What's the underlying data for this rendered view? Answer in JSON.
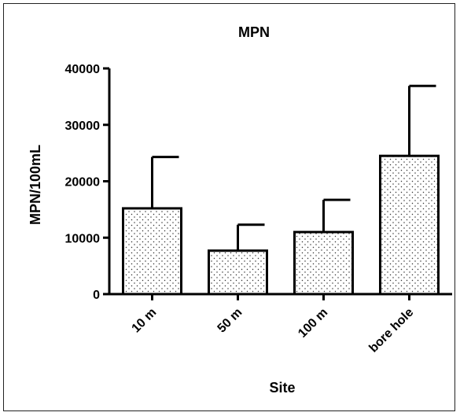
{
  "chart_data": {
    "type": "bar",
    "title": "MPN",
    "xlabel": "Site",
    "ylabel": "MPN/100mL",
    "categories": [
      "10 m",
      "50 m",
      "100 m",
      "bore hole"
    ],
    "values": [
      15200,
      7700,
      11000,
      24500
    ],
    "error_upper": [
      24300,
      12300,
      16700,
      36900
    ],
    "ylim": [
      0,
      40000
    ],
    "yticks": [
      0,
      10000,
      20000,
      30000,
      40000
    ],
    "ytick_labels": [
      "0",
      "10000",
      "20000",
      "30000",
      "40000"
    ],
    "bar_fill": "dotted",
    "bar_edge_color": "#000000",
    "grid": false,
    "legend": "none"
  }
}
